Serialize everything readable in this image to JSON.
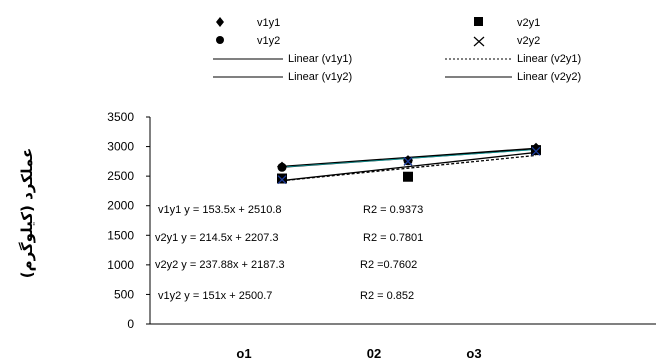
{
  "chart_data": {
    "type": "line",
    "ylabel": "عملکرد (کیلوگرم)",
    "categories": [
      "o1",
      "02",
      "o3"
    ],
    "yticks": [
      0,
      500,
      1000,
      1500,
      2000,
      2500,
      3000,
      3500
    ],
    "ylim": [
      0,
      3500
    ],
    "legend_placement": "top",
    "series": [
      {
        "name": "v1y1",
        "marker": "diamond",
        "values": [
          2660,
          2770,
          2980
        ]
      },
      {
        "name": "v2y1",
        "marker": "square",
        "values": [
          2460,
          2490,
          2940
        ]
      },
      {
        "name": "v1y2",
        "marker": "circle",
        "values": [
          2650,
          2760,
          2960
        ]
      },
      {
        "name": "v2y2",
        "marker": "x",
        "values": [
          2440,
          2750,
          2920
        ]
      }
    ],
    "trendlines": [
      {
        "name": "Linear (v1y1)",
        "style": "solid",
        "slope": 153.5,
        "intercept": 2510.8
      },
      {
        "name": "Linear (v2y1)",
        "style": "dashed",
        "slope": 214.5,
        "intercept": 2207.3
      },
      {
        "name": "Linear (v1y2)",
        "style": "solid",
        "slope": 151,
        "intercept": 2500.7
      },
      {
        "name": "Linear (v2y2)",
        "style": "solid",
        "slope": 237.88,
        "intercept": 2187.3
      }
    ],
    "annotations": [
      {
        "equation": "v1y1 y = 153.5x + 2510.8",
        "r2": "R2 = 0.9373"
      },
      {
        "equation": "v2y1 y = 214.5x + 2207.3",
        "r2": "R2 = 0.7801"
      },
      {
        "equation": "v2y2  y = 237.88x + 2187.3",
        "r2": "R2 =0.7602"
      },
      {
        "equation": "v1y2  y = 151x + 2500.7",
        "r2": "R2 = 0.852"
      }
    ],
    "colors": {
      "marker": "#000000",
      "v2y2_marker": "#1a3a9a",
      "accent_cyan": "#17c9c9",
      "axis": "#000000"
    }
  }
}
